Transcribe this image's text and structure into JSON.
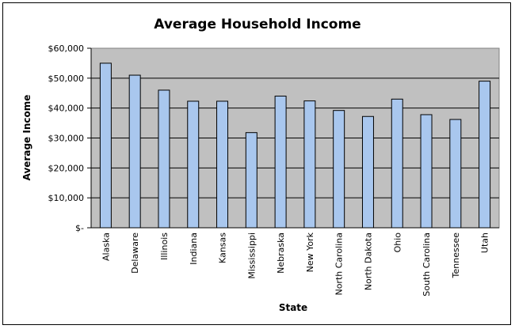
{
  "chart_data": {
    "type": "bar",
    "title": "Average Household Income",
    "xlabel": "State",
    "ylabel": "Average Income",
    "categories": [
      "Alaska",
      "Delaware",
      "Illinois",
      "Indiana",
      "Kansas",
      "Mississippi",
      "Nebraska",
      "New York",
      "North Carolina",
      "North Dakota",
      "Ohio",
      "South Carolina",
      "Tennessee",
      "Utah"
    ],
    "values": [
      55000,
      51000,
      46000,
      42300,
      42300,
      31800,
      44000,
      42400,
      39200,
      37200,
      43000,
      37800,
      36200,
      49000
    ],
    "ylim": [
      0,
      60000
    ],
    "yticks": [
      0,
      10000,
      20000,
      30000,
      40000,
      50000,
      60000
    ],
    "ytick_labels": [
      "$-",
      "$10,000",
      "$20,000",
      "$30,000",
      "$40,000",
      "$50,000",
      "$60,000"
    ],
    "grid": true,
    "legend": "none",
    "colors": {
      "plot_background": "#c0c0c0",
      "bar_fill": "#a9c7ee",
      "bar_stroke": "#000000",
      "gridline": "#000000"
    }
  }
}
